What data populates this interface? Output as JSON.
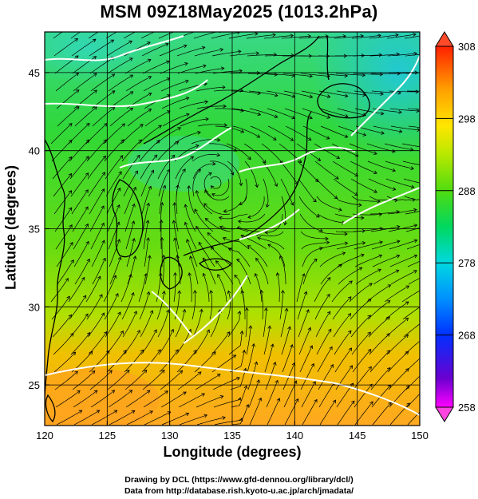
{
  "title": "MSM 09Z18May2025 (1013.2hPa)",
  "x_axis": {
    "label": "Longitude (degrees)",
    "ticks": [
      "120",
      "125",
      "130",
      "135",
      "140",
      "145",
      "150"
    ],
    "range": [
      120,
      150
    ]
  },
  "y_axis": {
    "label": "Latitude  (degrees)",
    "ticks": [
      "25",
      "30",
      "35",
      "40",
      "45"
    ],
    "range": [
      22.4,
      47.6
    ]
  },
  "colorbar": {
    "ticks": [
      "308",
      "298",
      "288",
      "278",
      "268",
      "258"
    ],
    "range": [
      258,
      308
    ],
    "colors": [
      "#ff00ff",
      "#3a00c8",
      "#0050ff",
      "#00b4ff",
      "#00e0c0",
      "#00d84a",
      "#6ee000",
      "#ccec00",
      "#ffe800",
      "#ffb000",
      "#ff7a00",
      "#ff3a00"
    ]
  },
  "field_colors": {
    "north_cool": "#30d0a0",
    "mid": "#3ad83a",
    "lime": "#8ce000",
    "south_warm": "#ffb020",
    "land_outline": "#000000",
    "contour": "#ffffff"
  },
  "credits": [
    "Drawing by DCL (https://www.gfd-dennou.org/library/dcl/)",
    "Data from http://database.rish.kyoto-u.ac.jp/arch/jmadata/"
  ]
}
